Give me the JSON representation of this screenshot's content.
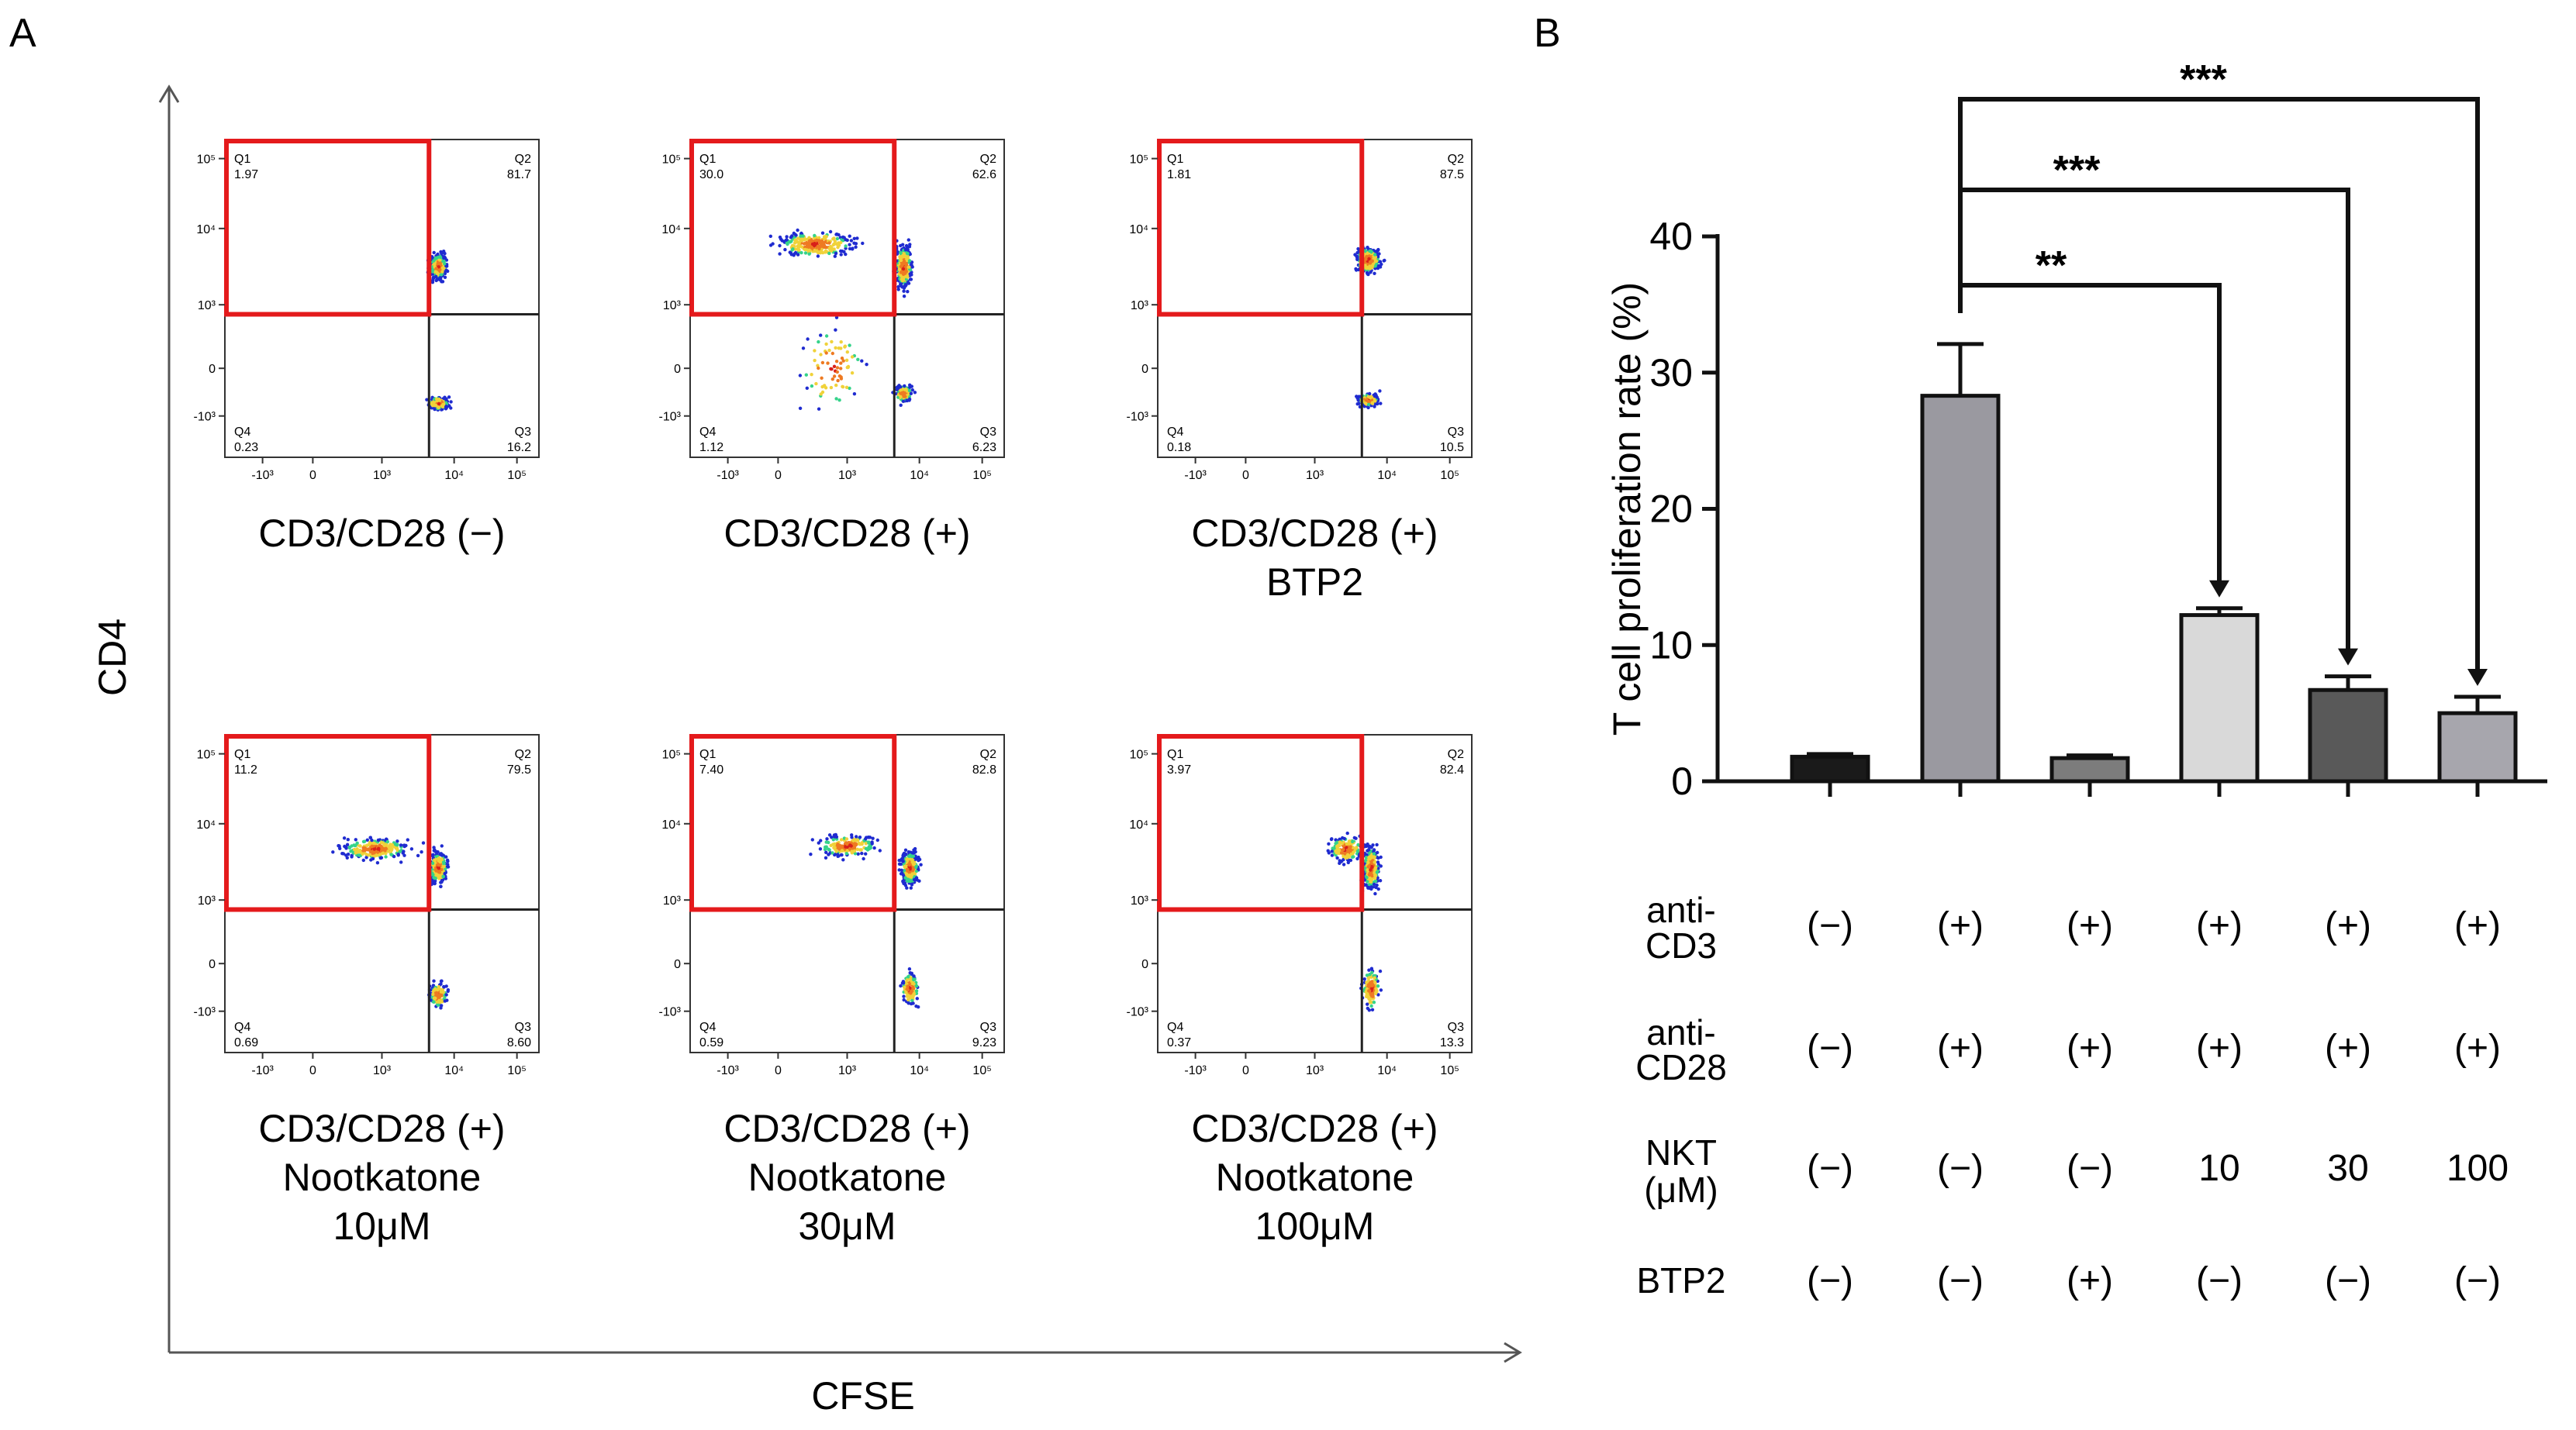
{
  "panel_labels": {
    "a": "A",
    "b": "B"
  },
  "panel_a": {
    "y_axis_label": "CD4",
    "x_axis_label": "CFSE",
    "tick_labels": {
      "x": [
        "-10³",
        "0",
        "10³",
        "10⁴",
        "10⁵"
      ],
      "y": [
        "10⁵",
        "10⁴",
        "10³",
        "0",
        "-10³"
      ]
    },
    "plots": [
      {
        "caption": [
          "CD3/CD28 (−)"
        ],
        "quadrants": {
          "Q1": "1.97",
          "Q2": "81.7",
          "Q3": "16.2",
          "Q4": "0.23"
        }
      },
      {
        "caption": [
          "CD3/CD28 (+)"
        ],
        "quadrants": {
          "Q1": "30.0",
          "Q2": "62.6",
          "Q3": "6.23",
          "Q4": "1.12"
        }
      },
      {
        "caption": [
          "CD3/CD28 (+)",
          "BTP2"
        ],
        "quadrants": {
          "Q1": "1.81",
          "Q2": "87.5",
          "Q3": "10.5",
          "Q4": "0.18"
        }
      },
      {
        "caption": [
          "CD3/CD28 (+)",
          "Nootkatone",
          "10μM"
        ],
        "quadrants": {
          "Q1": "11.2",
          "Q2": "79.5",
          "Q3": "8.60",
          "Q4": "0.69"
        }
      },
      {
        "caption": [
          "CD3/CD28 (+)",
          "Nootkatone",
          "30μM"
        ],
        "quadrants": {
          "Q1": "7.40",
          "Q2": "82.8",
          "Q3": "9.23",
          "Q4": "0.59"
        }
      },
      {
        "caption": [
          "CD3/CD28 (+)",
          "Nootkatone",
          "100μM"
        ],
        "quadrants": {
          "Q1": "3.97",
          "Q2": "82.4",
          "Q3": "13.3",
          "Q4": "0.37"
        }
      }
    ]
  },
  "chart_data": {
    "type": "bar",
    "ylabel": "T cell proliferation rate (%)",
    "ylim": [
      0,
      40
    ],
    "yticks": [
      0,
      10,
      20,
      30,
      40
    ],
    "values": [
      1.8,
      28.3,
      1.7,
      12.2,
      6.7,
      5.0
    ],
    "errors": [
      0.2,
      3.8,
      0.2,
      0.5,
      1.0,
      1.2
    ],
    "colors": [
      "#1a1a1a",
      "#9a99a0",
      "#7c7c7c",
      "#d9d9d9",
      "#595959",
      "#a7a6ad"
    ],
    "significance": [
      {
        "from": 1,
        "to": 3,
        "label": "**"
      },
      {
        "from": 1,
        "to": 4,
        "label": "***"
      },
      {
        "from": 1,
        "to": 5,
        "label": "***"
      }
    ],
    "conditions": [
      {
        "label": [
          "anti-",
          "CD3"
        ],
        "values": [
          "(−)",
          "(+)",
          "(+)",
          "(+)",
          "(+)",
          "(+)"
        ]
      },
      {
        "label": [
          "anti-",
          "CD28"
        ],
        "values": [
          "(−)",
          "(+)",
          "(+)",
          "(+)",
          "(+)",
          "(+)"
        ]
      },
      {
        "label": [
          "NKT",
          "(μM)"
        ],
        "values": [
          "(−)",
          "(−)",
          "(−)",
          "10",
          "30",
          "100"
        ]
      },
      {
        "label": [
          "BTP2"
        ],
        "values": [
          "(−)",
          "(−)",
          "(+)",
          "(−)",
          "(−)",
          "(−)"
        ]
      }
    ]
  },
  "colors": {
    "gate": "#e41a1c",
    "axis": "#1a1a1a",
    "quadrant_line": "#222222",
    "dot_blue": "#2432c8"
  }
}
